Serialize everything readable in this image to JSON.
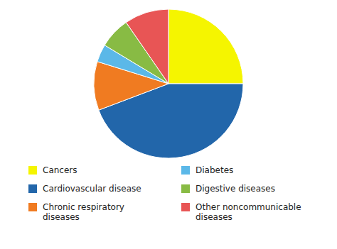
{
  "chart_data": {
    "type": "pie",
    "categories": [
      "Cancers",
      "Cardiovascular disease",
      "Chronic respiratory\ndiseases",
      "Diabetes",
      "Digestive diseases",
      "Other noncommunicable\ndiseases"
    ],
    "values": [
      26,
      46,
      11,
      4,
      7,
      10
    ],
    "colors": [
      "#F5F500",
      "#2266AA",
      "#F07B21",
      "#5BB8E8",
      "#88BB44",
      "#E85555"
    ],
    "legend": "bottom"
  }
}
